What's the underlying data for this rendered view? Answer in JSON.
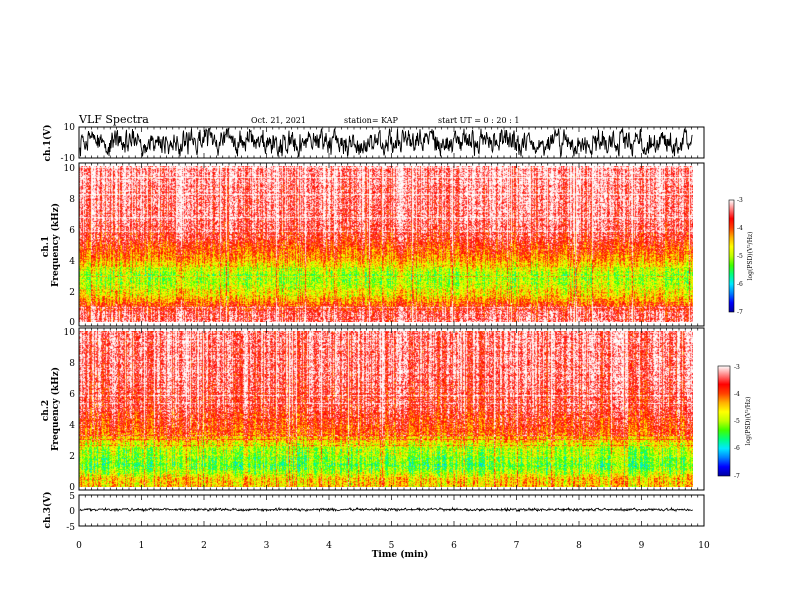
{
  "header": {
    "title": "VLF Spectra",
    "date": "Oct. 21, 2021",
    "station": "station= KAP",
    "start": "start  UT =  0 : 20 : 1"
  },
  "chart_data": [
    {
      "id": "ch1-waveform",
      "type": "line",
      "ylabel": "ch.1(V)",
      "ylim": [
        -10,
        10
      ],
      "ytick_labels": [
        "10",
        "-10"
      ],
      "x_range": [
        0,
        9.82
      ],
      "series": [
        {
          "color": "#000000",
          "mean": 0,
          "amplitude_estimate": 5
        }
      ]
    },
    {
      "id": "ch1-spectrogram",
      "type": "heatmap",
      "ylabel": "ch.1\nFrequency (kHz)",
      "ylim": [
        0,
        10
      ],
      "ytick_labels": [
        "0",
        "2",
        "4",
        "6",
        "8",
        "10"
      ],
      "x_range": [
        0,
        9.82
      ],
      "colorbar": {
        "label": "log(PSD)(V²/Hz)",
        "range": [
          -7,
          -3
        ],
        "tick_labels": [
          "-3",
          "-4",
          "-5",
          "-6",
          "-7"
        ]
      },
      "approx_log_psd_by_frequency_khz": [
        {
          "f": 0.5,
          "v": -3.4
        },
        {
          "f": 1.5,
          "v": -4.4
        },
        {
          "f": 2.0,
          "v": -4.8
        },
        {
          "f": 3.0,
          "v": -5.1
        },
        {
          "f": 4.0,
          "v": -4.3
        },
        {
          "f": 5.0,
          "v": -3.8
        },
        {
          "f": 6.0,
          "v": -3.4
        },
        {
          "f": 8.0,
          "v": -3.3
        },
        {
          "f": 10.0,
          "v": -3.2
        }
      ]
    },
    {
      "id": "ch2-spectrogram",
      "type": "heatmap",
      "ylabel": "ch.2\nFrequency (kHz)",
      "ylim": [
        0,
        10
      ],
      "ytick_labels": [
        "0",
        "2",
        "4",
        "6",
        "8",
        "10"
      ],
      "x_range": [
        0,
        9.82
      ],
      "colorbar": {
        "label": "log(PSD)(V²/Hz)",
        "range": [
          -7,
          -3
        ],
        "tick_labels": [
          "-3",
          "-4",
          "-5",
          "-6",
          "-7"
        ]
      },
      "approx_log_psd_by_frequency_khz": [
        {
          "f": 0.5,
          "v": -4.5
        },
        {
          "f": 1.0,
          "v": -5.2
        },
        {
          "f": 1.5,
          "v": -5.3
        },
        {
          "f": 2.5,
          "v": -5.0
        },
        {
          "f": 3.5,
          "v": -4.0
        },
        {
          "f": 5.0,
          "v": -3.6
        },
        {
          "f": 7.0,
          "v": -3.4
        },
        {
          "f": 10.0,
          "v": -3.3
        }
      ]
    },
    {
      "id": "ch3-waveform",
      "type": "line",
      "ylabel": "ch.3(V)",
      "ylim": [
        -5,
        5
      ],
      "ytick_labels": [
        "5",
        "0",
        "-5"
      ],
      "x_range": [
        0,
        9.82
      ],
      "series": [
        {
          "color": "#000000",
          "mean": 0.3,
          "amplitude_estimate": 0.6
        }
      ]
    }
  ],
  "xaxis": {
    "label": "Time (min)",
    "range": [
      0,
      10
    ],
    "tick_labels": [
      "0",
      "1",
      "2",
      "3",
      "4",
      "5",
      "6",
      "7",
      "8",
      "9",
      "10"
    ]
  },
  "colors": {
    "colormap": [
      "#0000a0",
      "#0000ff",
      "#0080ff",
      "#00e8ff",
      "#00ff80",
      "#40ff00",
      "#c0ff00",
      "#ffff00",
      "#ffb000",
      "#ff4000",
      "#ff0000",
      "#ff8080",
      "#ffffff"
    ]
  }
}
